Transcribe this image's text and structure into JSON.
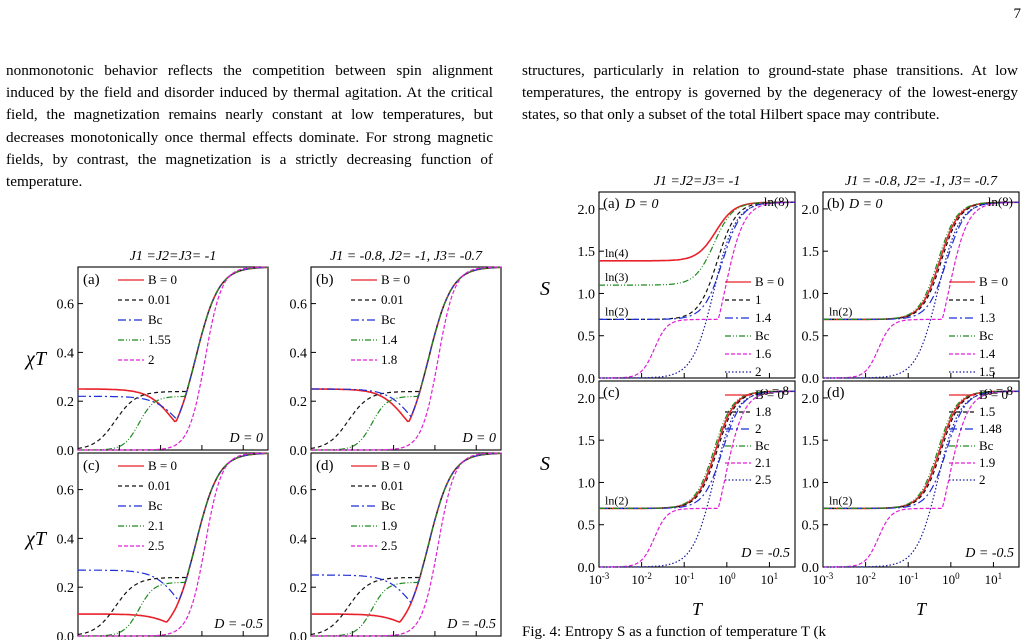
{
  "page_number": "7",
  "left_paragraph": "nonmonotonic behavior reflects the competition between spin alignment induced by the field and disorder induced by thermal agitation. At the critical field, the magnetization remains nearly constant at low temperatures, but decreases monotonically once thermal effects dominate. For strong magnetic fields, by contrast, the magnetization is a strictly decreasing function of temperature.",
  "right_paragraph": "structures, particularly in relation to ground-state phase transitions. At low temperatures, the entropy is governed by the degeneracy of the lowest-energy states, so that only a subset of the total Hilbert space may contribute.",
  "caption_fragment": "Fig. 4: Entropy S as a function of temperature T (k",
  "colors": {
    "red": "#e8222b",
    "black": "#111111",
    "blue": "#1f2fd6",
    "green": "#1d8a1d",
    "magenta": "#e020d6",
    "navy": "#1b1b9e"
  },
  "figures": {
    "chi": {
      "type": "line",
      "ylabel": "χT",
      "ylim": [
        0,
        0.75
      ],
      "yticks": [
        "0.0",
        "0.2",
        "0.4",
        "0.6"
      ],
      "col_titles": [
        "J1 =J2=J3= -1",
        "J1 = -0.8, J2= -1, J3= -0.7"
      ],
      "panels": [
        {
          "label": "(a)",
          "D": "D = 0",
          "legend": [
            "B = 0",
            "0.01",
            "Bc",
            "1.55",
            "2"
          ]
        },
        {
          "label": "(b)",
          "D": "D = 0",
          "legend": [
            "B = 0",
            "0.01",
            "Bc",
            "1.4",
            "1.8"
          ]
        },
        {
          "label": "(c)",
          "D": "D = -0.5",
          "legend": [
            "B = 0",
            "0.01",
            "Bc",
            "2.1",
            "2.5"
          ]
        },
        {
          "label": "(d)",
          "D": "D = -0.5",
          "legend": [
            "B = 0",
            "0.01",
            "Bc",
            "1.9",
            "2.5"
          ]
        }
      ]
    },
    "entropy": {
      "type": "line",
      "ylabel": "S",
      "xlabel": "T",
      "ylim": [
        0,
        2.2
      ],
      "yticks": [
        "0.0",
        "0.5",
        "1.0",
        "1.5",
        "2.0"
      ],
      "xticks": [
        "10-3",
        "10-2",
        "10-1",
        "100",
        "101"
      ],
      "col_titles": [
        "J1 =J2=J3= -1",
        "J1 = -0.8, J2= -1, J3= -0.7"
      ],
      "panels": [
        {
          "label": "(a)",
          "D": "D = 0",
          "tag": "ln(8)",
          "ln_labels": [
            "ln(4)",
            "ln(3)",
            "ln(2)"
          ],
          "legend": [
            "B = 0",
            "1",
            "1.4",
            "Bc",
            "1.6",
            "2"
          ]
        },
        {
          "label": "(b)",
          "D": "D = 0",
          "tag": "ln(8)",
          "ln_labels": [
            "ln(2)"
          ],
          "legend": [
            "B = 0",
            "1",
            "1.3",
            "Bc",
            "1.4",
            "1.5"
          ]
        },
        {
          "label": "(c)",
          "D": "D = -0.5",
          "tag": "ω = 8",
          "ln_labels": [
            "ln(2)"
          ],
          "legend": [
            "B = 0",
            "1.8",
            "2",
            "Bc",
            "2.1",
            "2.5"
          ]
        },
        {
          "label": "(d)",
          "D": "D = -0.5",
          "tag": "ω = 8",
          "ln_labels": [
            "ln(2)"
          ],
          "legend": [
            "B = 0",
            "1.5",
            "1.48",
            "Bc",
            "1.9",
            "2"
          ]
        }
      ]
    }
  }
}
